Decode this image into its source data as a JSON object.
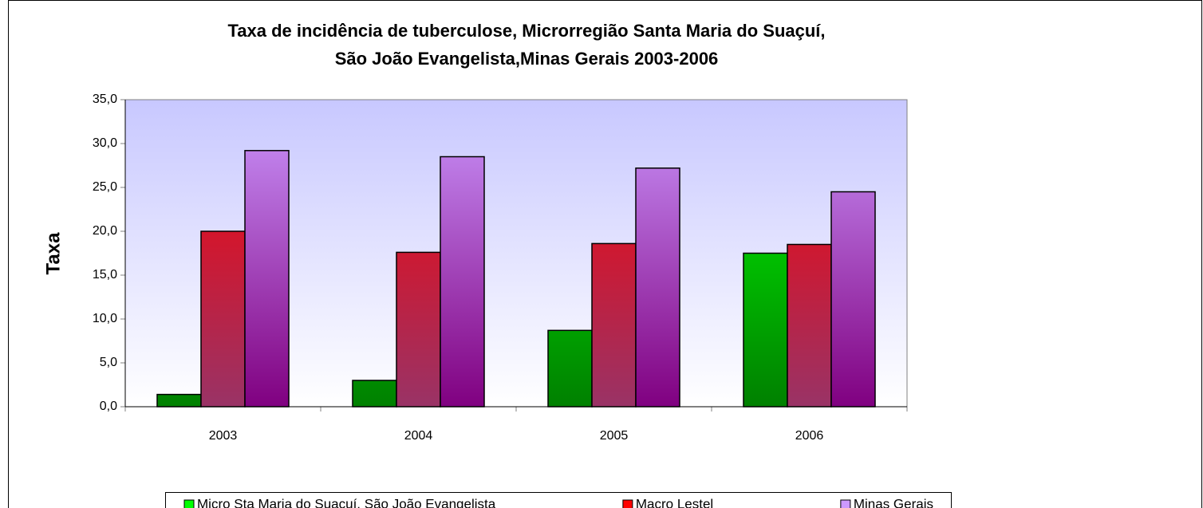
{
  "chart_data": {
    "type": "bar",
    "title": [
      "Taxa de incidência  de tuberculose, Microrregião Santa Maria do Suaçuí,",
      "São João Evangelista,Minas Gerais 2003-2006"
    ],
    "y_label": "Taxa",
    "categories": [
      "2003",
      "2004",
      "2005",
      "2006"
    ],
    "series": [
      {
        "name": "Micro Sta Maria do Suaçuí, São João Evangelista",
        "color": "#00ff00",
        "values": [
          1.4,
          3.0,
          8.7,
          17.5
        ]
      },
      {
        "name": "Macro Lestel",
        "color": "#ff0000",
        "values": [
          20.0,
          17.6,
          18.6,
          18.5
        ]
      },
      {
        "name": "Minas Gerais",
        "color": "#cc99ff",
        "values": [
          29.2,
          28.5,
          27.2,
          24.5
        ]
      }
    ],
    "ylim": [
      0,
      35
    ],
    "yticks": [
      {
        "value": 0,
        "label": "0,0"
      },
      {
        "value": 5,
        "label": "5,0"
      },
      {
        "value": 10,
        "label": "10,0"
      },
      {
        "value": 15,
        "label": "15,0"
      },
      {
        "value": 20,
        "label": "20,0"
      },
      {
        "value": 25,
        "label": "25,0"
      },
      {
        "value": 30,
        "label": "30,0"
      },
      {
        "value": 35,
        "label": "35,0"
      }
    ],
    "legend": "bottom"
  }
}
